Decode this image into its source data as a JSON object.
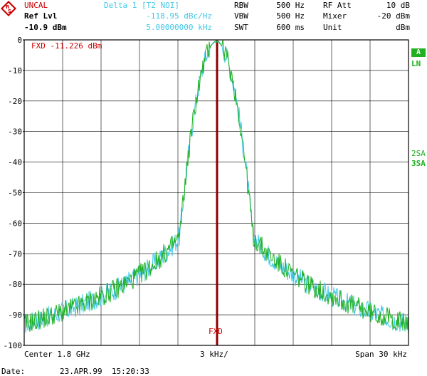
{
  "header": {
    "uncal": "UNCAL",
    "ref_lvl_label": "Ref Lvl",
    "ref_lvl_value": "-10.9 dBm",
    "delta_label": "Delta 1 [T2 NOI]",
    "delta_value": "-118.95 dBc/Hz",
    "delta_freq": "5.00000000 kHz",
    "rbw_label": "RBW",
    "rbw_value": "500 Hz",
    "vbw_label": "VBW",
    "vbw_value": "500 Hz",
    "swt_label": "SWT",
    "swt_value": "600 ms",
    "rfatt_label": "RF Att",
    "rfatt_value": "10 dB",
    "mixer_label": "Mixer",
    "mixer_value": "-20 dBm",
    "unit_label": "Unit",
    "unit_value": "dBm"
  },
  "plot": {
    "fxd_label": "FXD -11.226 dBm",
    "fxd_marker": "FXD",
    "y_ticks": [
      "0",
      "-10",
      "-20",
      "-30",
      "-40",
      "-50",
      "-60",
      "-70",
      "-80",
      "-90",
      "-100"
    ],
    "grid_color": "#000000",
    "trace1_color": "#40c8e8",
    "trace2_color": "#20b020",
    "fxd_color": "#8b0000"
  },
  "side": {
    "a_badge": "A",
    "ln": "LN",
    "sa2": "2SA",
    "sa3": "3SA"
  },
  "footer": {
    "center": "Center 1.8 GHz",
    "div": "3 kHz/",
    "span": "Span 30 kHz",
    "date_label": "Date:",
    "date_value": "23.APR.99  15:20:33"
  }
}
